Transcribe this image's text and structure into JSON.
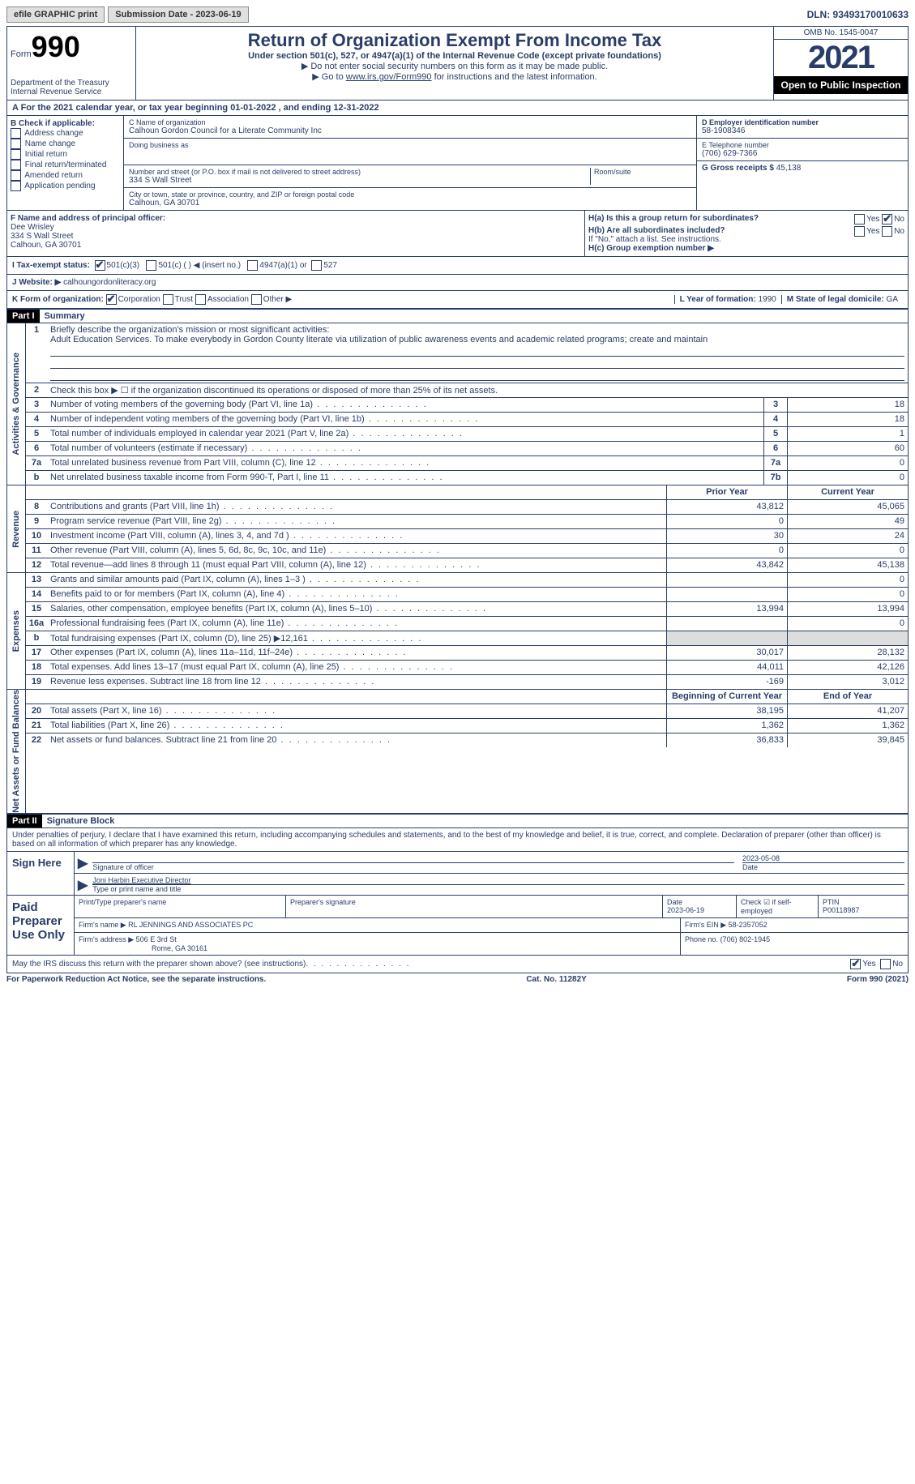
{
  "topbar": {
    "efile": "efile GRAPHIC print",
    "submission": "Submission Date - 2023-06-19",
    "dln": "DLN: 93493170010633"
  },
  "header": {
    "form_word": "Form",
    "form_num": "990",
    "dept": "Department of the Treasury Internal Revenue Service",
    "title": "Return of Organization Exempt From Income Tax",
    "sub1": "Under section 501(c), 527, or 4947(a)(1) of the Internal Revenue Code (except private foundations)",
    "sub2": "▶ Do not enter social security numbers on this form as it may be made public.",
    "sub3_pre": "▶ Go to ",
    "sub3_link": "www.irs.gov/Form990",
    "sub3_post": " for instructions and the latest information.",
    "omb": "OMB No. 1545-0047",
    "year": "2021",
    "open": "Open to Public Inspection"
  },
  "section_a": "A For the 2021 calendar year, or tax year beginning 01-01-2022   , and ending 12-31-2022",
  "col_b": {
    "header": "B Check if applicable:",
    "items": [
      "Address change",
      "Name change",
      "Initial return",
      "Final return/terminated",
      "Amended return",
      "Application pending"
    ]
  },
  "col_c": {
    "name_label": "C Name of organization",
    "name": "Calhoun Gordon Council for a Literate Community Inc",
    "dba_label": "Doing business as",
    "street_label": "Number and street (or P.O. box if mail is not delivered to street address)",
    "room_label": "Room/suite",
    "street": "334 S Wall Street",
    "city_label": "City or town, state or province, country, and ZIP or foreign postal code",
    "city": "Calhoun, GA  30701"
  },
  "col_d": {
    "ein_label": "D Employer identification number",
    "ein": "58-1908346",
    "tel_label": "E Telephone number",
    "tel": "(706) 629-7366",
    "gross_label": "G Gross receipts $",
    "gross": "45,138"
  },
  "section_f": {
    "label": "F  Name and address of principal officer:",
    "name": "Dee Wrisley",
    "addr1": "334 S Wall Street",
    "addr2": "Calhoun, GA  30701"
  },
  "section_h": {
    "ha": "H(a)  Is this a group return for subordinates?",
    "hb": "H(b)  Are all subordinates included?",
    "hb_note": "If \"No,\" attach a list. See instructions.",
    "hc": "H(c)  Group exemption number ▶",
    "yes": "Yes",
    "no": "No"
  },
  "section_i": {
    "label": "I   Tax-exempt status:",
    "c3": "501(c)(3)",
    "c": "501(c) (  ) ◀ (insert no.)",
    "a1": "4947(a)(1) or",
    "s527": "527"
  },
  "section_j": {
    "label": "J   Website: ▶",
    "value": "calhoungordonliteracy.org"
  },
  "section_k": {
    "label": "K Form of organization:",
    "corp": "Corporation",
    "trust": "Trust",
    "assoc": "Association",
    "other": "Other ▶"
  },
  "section_l": {
    "label": "L Year of formation:",
    "value": "1990"
  },
  "section_m": {
    "label": "M State of legal domicile:",
    "value": "GA"
  },
  "part1": {
    "header": "Part I",
    "title": "Summary",
    "line1_label": "Briefly describe the organization's mission or most significant activities:",
    "line1_text": "Adult Education Services. To make everybody in Gordon County literate via utilization of public awareness events and academic related programs; create and maintain",
    "line2": "Check this box ▶ ☐ if the organization discontinued its operations or disposed of more than 25% of its net assets.",
    "lines_gov": [
      {
        "n": "3",
        "d": "Number of voting members of the governing body (Part VI, line 1a)",
        "box": "3",
        "v": "18"
      },
      {
        "n": "4",
        "d": "Number of independent voting members of the governing body (Part VI, line 1b)",
        "box": "4",
        "v": "18"
      },
      {
        "n": "5",
        "d": "Total number of individuals employed in calendar year 2021 (Part V, line 2a)",
        "box": "5",
        "v": "1"
      },
      {
        "n": "6",
        "d": "Total number of volunteers (estimate if necessary)",
        "box": "6",
        "v": "60"
      },
      {
        "n": "7a",
        "d": "Total unrelated business revenue from Part VIII, column (C), line 12",
        "box": "7a",
        "v": "0"
      },
      {
        "n": "b",
        "d": "Net unrelated business taxable income from Form 990-T, Part I, line 11",
        "box": "7b",
        "v": "0"
      }
    ],
    "col_prior": "Prior Year",
    "col_current": "Current Year",
    "revenue": [
      {
        "n": "8",
        "d": "Contributions and grants (Part VIII, line 1h)",
        "p": "43,812",
        "c": "45,065"
      },
      {
        "n": "9",
        "d": "Program service revenue (Part VIII, line 2g)",
        "p": "0",
        "c": "49"
      },
      {
        "n": "10",
        "d": "Investment income (Part VIII, column (A), lines 3, 4, and 7d )",
        "p": "30",
        "c": "24"
      },
      {
        "n": "11",
        "d": "Other revenue (Part VIII, column (A), lines 5, 6d, 8c, 9c, 10c, and 11e)",
        "p": "0",
        "c": "0"
      },
      {
        "n": "12",
        "d": "Total revenue—add lines 8 through 11 (must equal Part VIII, column (A), line 12)",
        "p": "43,842",
        "c": "45,138"
      }
    ],
    "expenses": [
      {
        "n": "13",
        "d": "Grants and similar amounts paid (Part IX, column (A), lines 1–3 )",
        "p": "",
        "c": "0"
      },
      {
        "n": "14",
        "d": "Benefits paid to or for members (Part IX, column (A), line 4)",
        "p": "",
        "c": "0"
      },
      {
        "n": "15",
        "d": "Salaries, other compensation, employee benefits (Part IX, column (A), lines 5–10)",
        "p": "13,994",
        "c": "13,994"
      },
      {
        "n": "16a",
        "d": "Professional fundraising fees (Part IX, column (A), line 11e)",
        "p": "",
        "c": "0"
      },
      {
        "n": "b",
        "d": "Total fundraising expenses (Part IX, column (D), line 25) ▶12,161",
        "p": "shade",
        "c": "shade"
      },
      {
        "n": "17",
        "d": "Other expenses (Part IX, column (A), lines 11a–11d, 11f–24e)",
        "p": "30,017",
        "c": "28,132"
      },
      {
        "n": "18",
        "d": "Total expenses. Add lines 13–17 (must equal Part IX, column (A), line 25)",
        "p": "44,011",
        "c": "42,126"
      },
      {
        "n": "19",
        "d": "Revenue less expenses. Subtract line 18 from line 12",
        "p": "-169",
        "c": "3,012"
      }
    ],
    "col_begin": "Beginning of Current Year",
    "col_end": "End of Year",
    "net": [
      {
        "n": "20",
        "d": "Total assets (Part X, line 16)",
        "p": "38,195",
        "c": "41,207"
      },
      {
        "n": "21",
        "d": "Total liabilities (Part X, line 26)",
        "p": "1,362",
        "c": "1,362"
      },
      {
        "n": "22",
        "d": "Net assets or fund balances. Subtract line 21 from line 20",
        "p": "36,833",
        "c": "39,845"
      }
    ],
    "vlabels": {
      "gov": "Activities & Governance",
      "rev": "Revenue",
      "exp": "Expenses",
      "net": "Net Assets or Fund Balances"
    }
  },
  "part2": {
    "header": "Part II",
    "title": "Signature Block",
    "decl": "Under penalties of perjury, I declare that I have examined this return, including accompanying schedules and statements, and to the best of my knowledge and belief, it is true, correct, and complete. Declaration of preparer (other than officer) is based on all information of which preparer has any knowledge.",
    "sign_here": "Sign Here",
    "sig_officer": "Signature of officer",
    "date": "Date",
    "date_val": "2023-05-08",
    "typed_name": "Joni Harbin  Executive Director",
    "typed_label": "Type or print name and title",
    "paid": "Paid Preparer Use Only",
    "p_name_label": "Print/Type preparer's name",
    "p_sig_label": "Preparer's signature",
    "p_date_label": "Date",
    "p_date": "2023-06-19",
    "p_check": "Check ☑ if self-employed",
    "ptin_label": "PTIN",
    "ptin": "P00118987",
    "firm_name_label": "Firm's name    ▶",
    "firm_name": "RL JENNINGS AND ASSOCIATES PC",
    "firm_ein_label": "Firm's EIN ▶",
    "firm_ein": "58-2357052",
    "firm_addr_label": "Firm's address ▶",
    "firm_addr": "506 E 3rd St",
    "firm_addr2": "Rome, GA  30161",
    "phone_label": "Phone no.",
    "phone": "(706) 802-1945",
    "discuss": "May the IRS discuss this return with the preparer shown above? (see instructions)",
    "yes": "Yes",
    "no": "No"
  },
  "footer": {
    "left": "For Paperwork Reduction Act Notice, see the separate instructions.",
    "mid": "Cat. No. 11282Y",
    "right": "Form 990 (2021)"
  }
}
